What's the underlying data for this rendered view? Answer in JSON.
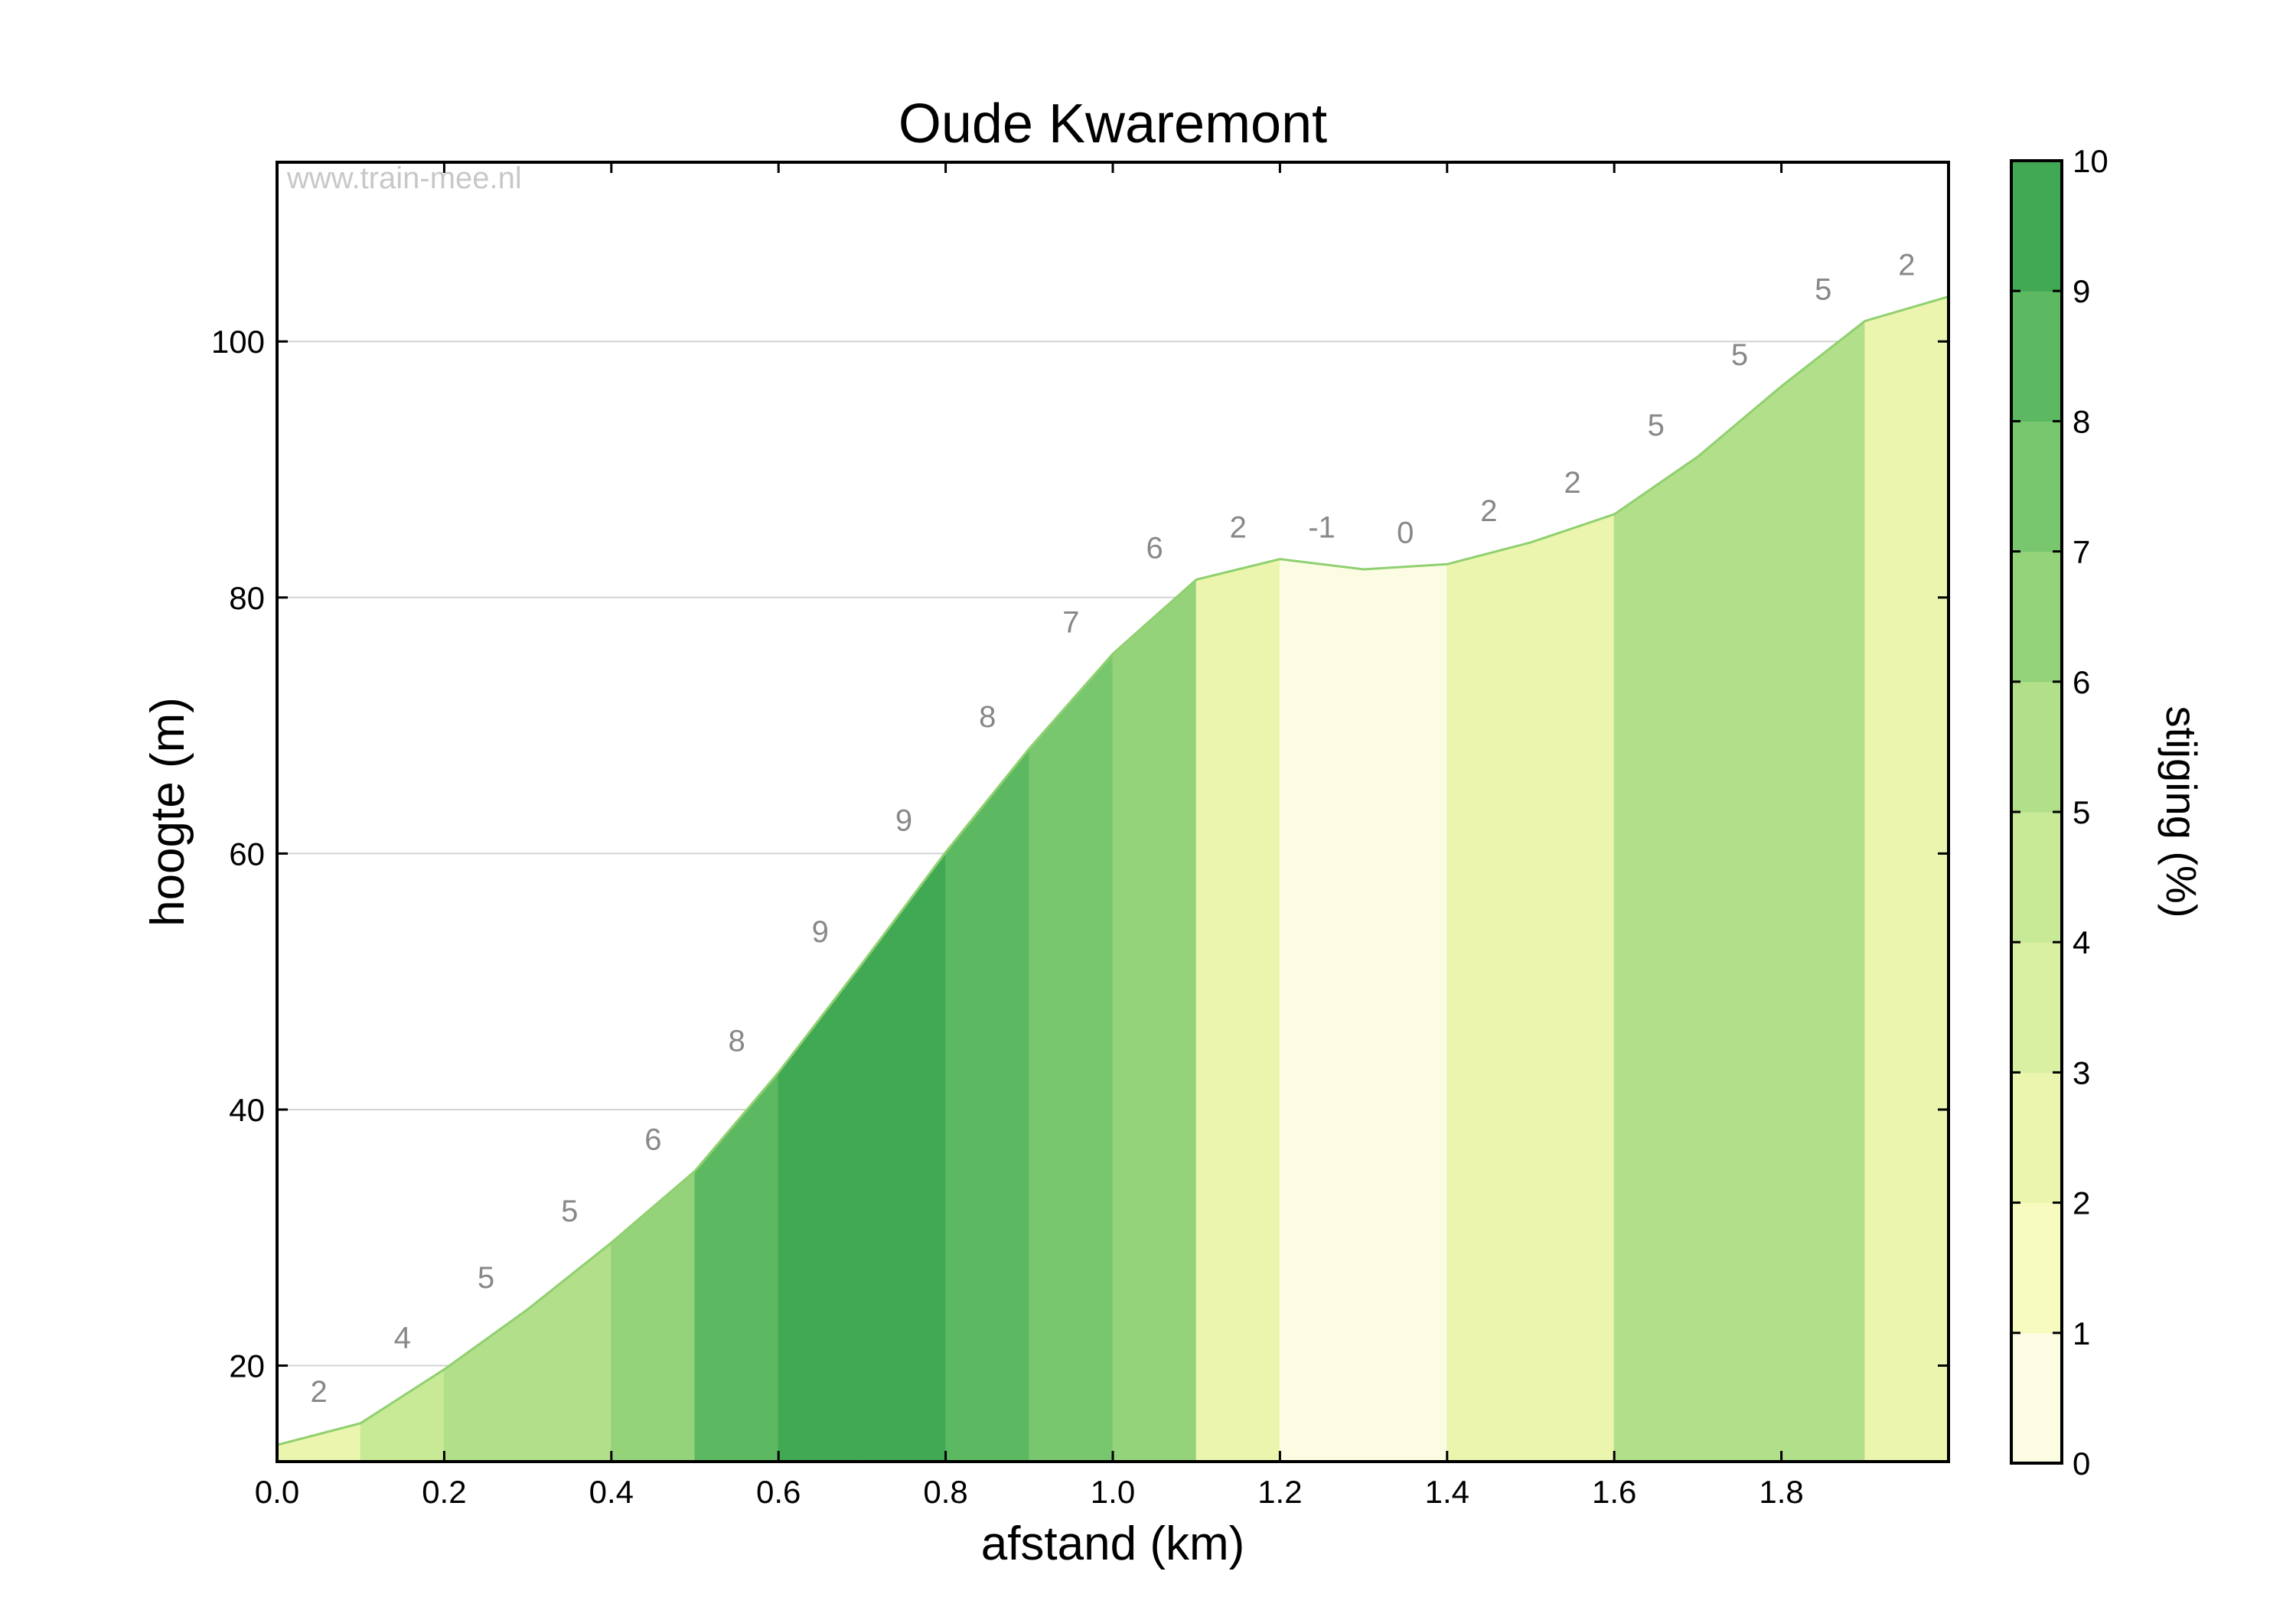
{
  "chart_data": {
    "type": "area",
    "title": "Oude Kwaremont",
    "xlabel": "afstand (km)",
    "ylabel": "hoogte (m)",
    "watermark": "www.train-mee.nl",
    "xlim": [
      0,
      2.0
    ],
    "ylim": [
      12.5,
      114
    ],
    "x_ticks": [
      0.0,
      0.2,
      0.4,
      0.6,
      0.8,
      1.0,
      1.2,
      1.4,
      1.6,
      1.8
    ],
    "x_tick_labels": [
      "0.0",
      "0.2",
      "0.4",
      "0.6",
      "0.8",
      "1.0",
      "1.2",
      "1.4",
      "1.6",
      "1.8"
    ],
    "y_ticks": [
      20,
      40,
      60,
      80,
      100
    ],
    "y_tick_labels": [
      "20",
      "40",
      "60",
      "80",
      "100"
    ],
    "grid": "horizontal",
    "profile": {
      "x": [
        0.0,
        0.1,
        0.2,
        0.3,
        0.4,
        0.5,
        0.6,
        0.7,
        0.8,
        0.9,
        1.0,
        1.1,
        1.2,
        1.3,
        1.4,
        1.5,
        1.6,
        1.7,
        1.8,
        1.9,
        2.0
      ],
      "y": [
        13.8,
        15.5,
        19.7,
        24.4,
        29.6,
        35.2,
        42.9,
        51.4,
        60.1,
        68.2,
        75.6,
        81.4,
        83.0,
        82.2,
        82.6,
        84.3,
        86.5,
        91.0,
        96.5,
        101.6,
        103.5
      ]
    },
    "segments": [
      {
        "x0": 0.0,
        "x1": 0.1,
        "gradient": 2,
        "label": "2"
      },
      {
        "x0": 0.1,
        "x1": 0.2,
        "gradient": 4,
        "label": "4"
      },
      {
        "x0": 0.2,
        "x1": 0.3,
        "gradient": 5,
        "label": "5"
      },
      {
        "x0": 0.3,
        "x1": 0.4,
        "gradient": 5,
        "label": "5"
      },
      {
        "x0": 0.4,
        "x1": 0.5,
        "gradient": 6,
        "label": "6"
      },
      {
        "x0": 0.5,
        "x1": 0.6,
        "gradient": 8,
        "label": "8"
      },
      {
        "x0": 0.6,
        "x1": 0.7,
        "gradient": 9,
        "label": "9"
      },
      {
        "x0": 0.7,
        "x1": 0.8,
        "gradient": 9,
        "label": "9"
      },
      {
        "x0": 0.8,
        "x1": 0.9,
        "gradient": 8,
        "label": "8"
      },
      {
        "x0": 0.9,
        "x1": 1.0,
        "gradient": 7,
        "label": "7"
      },
      {
        "x0": 1.0,
        "x1": 1.1,
        "gradient": 6,
        "label": "6"
      },
      {
        "x0": 1.1,
        "x1": 1.2,
        "gradient": 2,
        "label": "2"
      },
      {
        "x0": 1.2,
        "x1": 1.3,
        "gradient": -1,
        "label": "-1"
      },
      {
        "x0": 1.3,
        "x1": 1.4,
        "gradient": 0,
        "label": "0"
      },
      {
        "x0": 1.4,
        "x1": 1.5,
        "gradient": 2,
        "label": "2"
      },
      {
        "x0": 1.5,
        "x1": 1.6,
        "gradient": 2,
        "label": "2"
      },
      {
        "x0": 1.6,
        "x1": 1.7,
        "gradient": 5,
        "label": "5"
      },
      {
        "x0": 1.7,
        "x1": 1.8,
        "gradient": 5,
        "label": "5"
      },
      {
        "x0": 1.8,
        "x1": 1.9,
        "gradient": 5,
        "label": "5"
      },
      {
        "x0": 1.9,
        "x1": 2.0,
        "gradient": 2,
        "label": "2"
      }
    ],
    "colorbar": {
      "label": "stijging (%)",
      "range": [
        0,
        10
      ],
      "ticks": [
        0,
        1,
        2,
        3,
        4,
        5,
        6,
        7,
        8,
        9,
        10
      ],
      "tick_labels": [
        "0",
        "1",
        "2",
        "3",
        "4",
        "5",
        "6",
        "7",
        "8",
        "9",
        "10"
      ],
      "colors": [
        "#fcfce2",
        "#f7fbbf",
        "#ebf5ad",
        "#d9efa1",
        "#c8e996",
        "#b2df8a",
        "#95d37b",
        "#78c76f",
        "#5cb861",
        "#41a853"
      ],
      "line_color": "#90d070",
      "label_color": "#888888"
    }
  }
}
